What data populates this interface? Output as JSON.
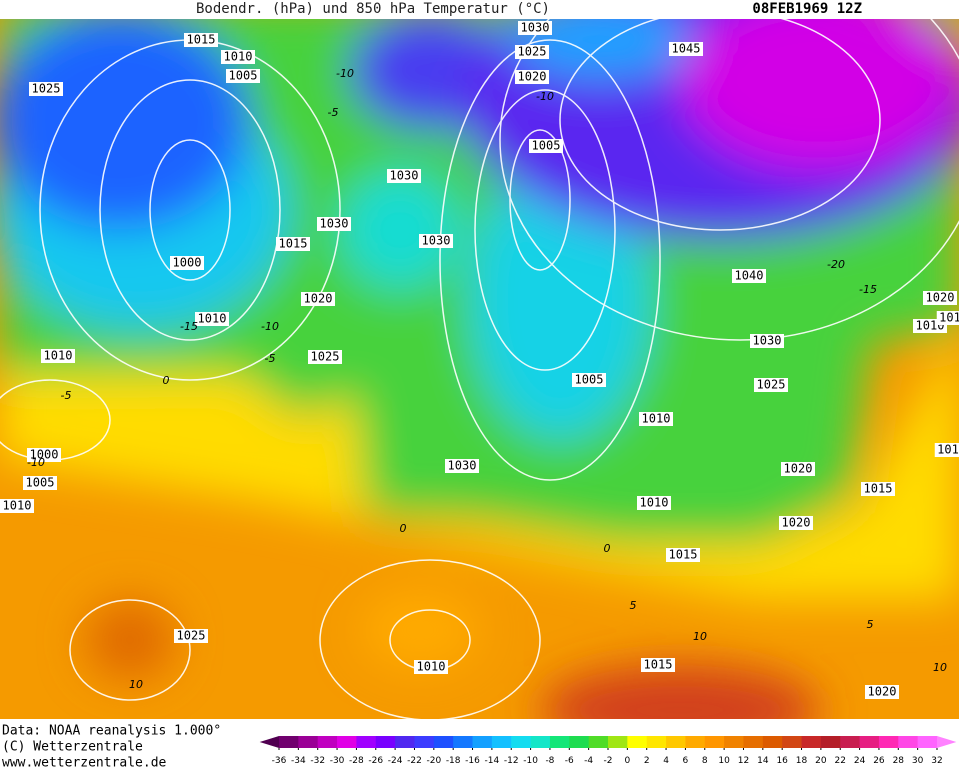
{
  "header": {
    "title": "Bodendr. (hPa) und 850 hPa Temperatur (°C)",
    "date": "08FEB1969 12Z"
  },
  "isobar_labels": [
    "1015",
    "1010",
    "1005",
    "1025",
    "1030",
    "1025",
    "1020",
    "1005",
    "1045",
    "1030",
    "1030",
    "1015",
    "1030",
    "1000",
    "1040",
    "1020",
    "1020",
    "1010",
    "1010",
    "1030",
    "1010",
    "1025",
    "1005",
    "1025",
    "1010",
    "1000",
    "1030",
    "1020",
    "1005",
    "1015",
    "1010",
    "1010",
    "1020",
    "1015",
    "1025",
    "1010",
    "1015",
    "1020",
    "101",
    "101"
  ],
  "temperature_labels": [
    "-10",
    "-5",
    "-10",
    "-15",
    "-5",
    "0",
    "-5",
    "-10",
    "-15",
    "-20",
    "0",
    "0",
    "5",
    "10",
    "5",
    "10",
    "10",
    "-10"
  ],
  "footer": {
    "lines": [
      "Data: NOAA reanalysis 1.000°",
      "(C) Wetterzentrale",
      "www.wetterzentrale.de"
    ]
  },
  "legend": {
    "ticks": [
      -36,
      -34,
      -32,
      -30,
      -28,
      -26,
      -24,
      -22,
      -20,
      -18,
      -16,
      -14,
      -12,
      -10,
      -8,
      -6,
      -4,
      -2,
      0,
      2,
      4,
      6,
      8,
      10,
      12,
      14,
      16,
      18,
      20,
      22,
      24,
      26,
      28,
      30,
      32
    ],
    "colors": [
      "#500050",
      "#70006e",
      "#9a0096",
      "#c000c0",
      "#e000e6",
      "#a000ff",
      "#7800ff",
      "#5028f0",
      "#3c3cff",
      "#1e50ff",
      "#1478ff",
      "#14a0ff",
      "#14c0ff",
      "#14dcf0",
      "#14e6c8",
      "#14e678",
      "#1edc50",
      "#50dc28",
      "#a0e614",
      "#ffff00",
      "#ffe600",
      "#ffc800",
      "#ffaa00",
      "#ff9600",
      "#f08200",
      "#e66e00",
      "#dc5a00",
      "#d24614",
      "#c82828",
      "#b41e28",
      "#c81e50",
      "#e61e82",
      "#ff28b4",
      "#ff46e6",
      "#ff64ff",
      "#ff82ff"
    ]
  }
}
